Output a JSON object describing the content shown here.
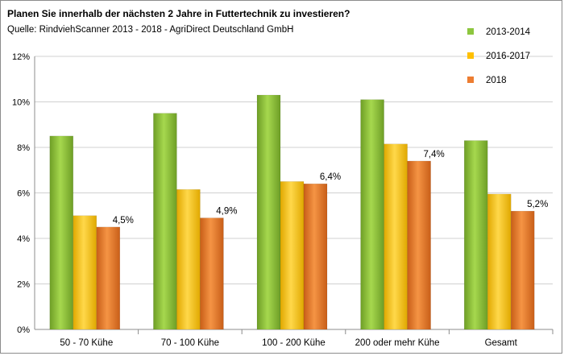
{
  "chart_data": {
    "type": "bar",
    "title": "Planen Sie innerhalb der nächsten 2 Jahre in Futtertechnik zu investieren?",
    "subtitle": "Quelle: RindviehScanner 2013 - 2018 - AgriDirect Deutschland GmbH",
    "categories": [
      "50 - 70 Kühe",
      "70 - 100 Kühe",
      "100 - 200 Kühe",
      "200 oder mehr Kühe",
      "Gesamt"
    ],
    "ylim": [
      0,
      12
    ],
    "yticks": [
      0,
      2,
      4,
      6,
      8,
      10,
      12
    ],
    "ytick_labels": [
      "0%",
      "2%",
      "4%",
      "6%",
      "8%",
      "10%",
      "12%"
    ],
    "grid": true,
    "legend_position": "top-right",
    "series": [
      {
        "name": "2013-2014",
        "color": "#8DC63F",
        "values": [
          8.5,
          9.5,
          10.3,
          10.1,
          8.3
        ]
      },
      {
        "name": "2016-2017",
        "color": "#FFC000",
        "values": [
          5.0,
          6.15,
          6.5,
          8.15,
          5.95
        ]
      },
      {
        "name": "2018",
        "color": "#ED7D31",
        "values": [
          4.5,
          4.9,
          6.4,
          7.4,
          5.2
        ],
        "labels": [
          "4,5%",
          "4,9%",
          "6,4%",
          "7,4%",
          "5,2%"
        ]
      }
    ]
  }
}
